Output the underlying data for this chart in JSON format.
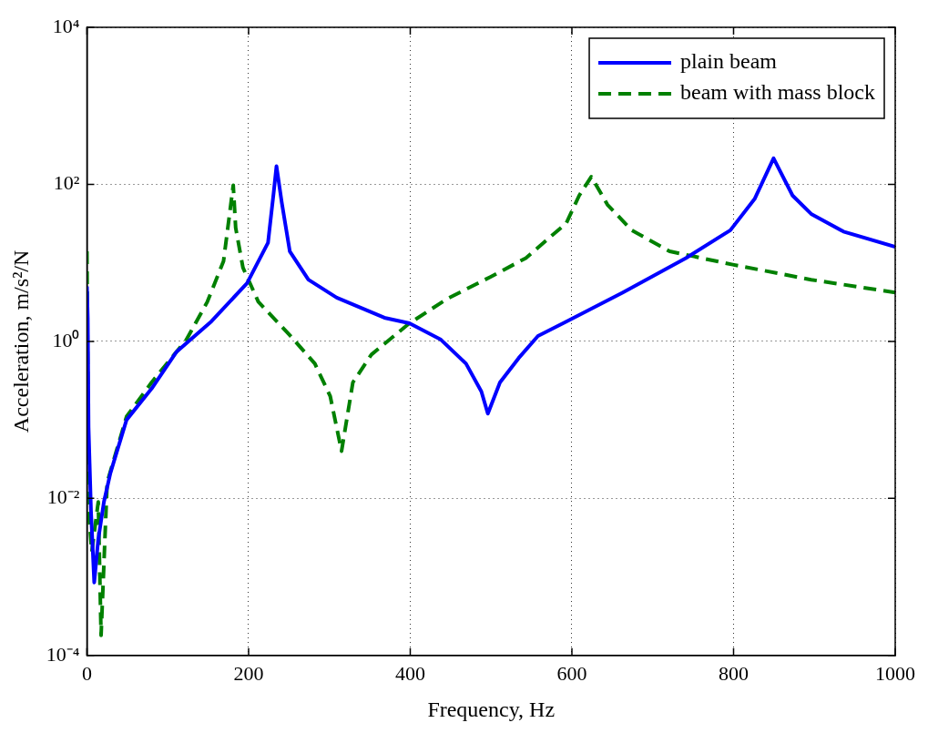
{
  "chart_data": {
    "type": "line",
    "xlabel": "Frequency, Hz",
    "ylabel": "Acceleration, m/s²/N",
    "log": "y",
    "grid": true,
    "legend": "top right",
    "xlim": [
      0,
      1000
    ],
    "xticks": [
      0,
      200,
      400,
      600,
      800,
      1000
    ],
    "ylim": [
      0.0001,
      10000
    ],
    "yticks": [
      {
        "value": 0.0001,
        "label": "10⁻⁴"
      },
      {
        "value": 0.01,
        "label": "10⁻²"
      },
      {
        "value": 1,
        "label": "10⁰"
      },
      {
        "value": 100,
        "label": "10²"
      },
      {
        "value": 10000,
        "label": "10⁴"
      }
    ],
    "series": [
      {
        "name": "plain beam",
        "color": "#0000ff",
        "line_style": "solid",
        "x": [
          0,
          1,
          2,
          5,
          9,
          14,
          21,
          29,
          49,
          80,
          111,
          154,
          198,
          224,
          231,
          234.5,
          241,
          251,
          274,
          309,
          368,
          399,
          438,
          469,
          488,
          496,
          511,
          534,
          558,
          593,
          663,
          741,
          796,
          826,
          849.5,
          873,
          896,
          936,
          1000
        ],
        "values": [
          5,
          2,
          0.08,
          0.007,
          0.00085,
          0.003,
          0.009,
          0.021,
          0.1,
          0.25,
          0.74,
          1.8,
          5.5,
          18,
          78,
          170,
          59,
          14,
          6.1,
          3.6,
          2,
          1.7,
          1.05,
          0.52,
          0.23,
          0.12,
          0.3,
          0.61,
          1.17,
          1.78,
          4.2,
          11.5,
          26,
          65,
          215,
          72,
          42,
          25,
          16
        ]
      },
      {
        "name": "beam with mass block",
        "color": "#008000",
        "line_style": "dashed",
        "x": [
          0,
          2,
          6,
          14,
          17.5,
          25,
          49,
          80,
          123,
          149,
          169,
          181,
          184,
          193,
          212,
          251,
          282,
          301,
          315,
          329,
          352,
          399,
          446,
          499,
          543,
          593,
          609,
          624,
          644,
          674,
          721,
          799,
          896,
          1000
        ],
        "values": [
          14,
          0.007,
          0.0021,
          0.009,
          0.00018,
          0.016,
          0.11,
          0.3,
          1.05,
          3.2,
          10.5,
          97,
          28,
          8.7,
          3.2,
          1.2,
          0.52,
          0.2,
          0.04,
          0.3,
          0.68,
          1.7,
          3.5,
          6.6,
          11.5,
          32,
          72,
          125,
          55,
          26,
          14,
          9.5,
          6.1,
          4.2
        ]
      }
    ]
  }
}
